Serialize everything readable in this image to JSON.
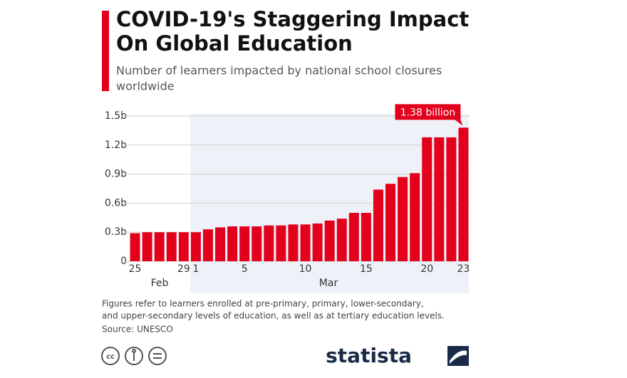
{
  "chart_data": {
    "type": "bar",
    "title": [
      "COVID-19's Staggering Impact",
      "On Global Education"
    ],
    "subtitle": [
      "Number of learners impacted by national school closures",
      "worldwide"
    ],
    "categories": [
      "25",
      null,
      null,
      null,
      "29",
      "1",
      null,
      null,
      null,
      "5",
      null,
      null,
      null,
      null,
      "10",
      null,
      null,
      null,
      null,
      "15",
      null,
      null,
      null,
      null,
      "20",
      null,
      null,
      "23"
    ],
    "x_groups": [
      "Feb",
      "Mar"
    ],
    "values": [
      0.29,
      0.3,
      0.3,
      0.3,
      0.3,
      0.3,
      0.33,
      0.35,
      0.36,
      0.36,
      0.36,
      0.37,
      0.37,
      0.38,
      0.38,
      0.39,
      0.42,
      0.44,
      0.5,
      0.5,
      0.74,
      0.8,
      0.87,
      0.91,
      1.28,
      1.28,
      1.28,
      1.38
    ],
    "value_labels": [
      null,
      null,
      null,
      null,
      null,
      null,
      null,
      null,
      null,
      null,
      null,
      null,
      null,
      null,
      null,
      null,
      null,
      null,
      null,
      null,
      null,
      null,
      null,
      null,
      null,
      null,
      null,
      "1.38 billion"
    ],
    "color": "#e3001b",
    "ylim": [
      0,
      1.5
    ],
    "yticks": [
      0,
      {
        "value": 0.3,
        "label": "0.3b"
      },
      {
        "value": 0.6,
        "label": "0.6b"
      },
      {
        "value": 0.9,
        "label": "0.9b"
      },
      {
        "value": 1.2,
        "label": "1.2b"
      },
      {
        "value": 1.5,
        "label": "1.5b"
      }
    ],
    "grid": true,
    "notes": [
      "Figures refer to learners enrolled at pre-primary, primary, lower-secondary,",
      "and upper-secondary levels of education, as well as at tertiary education levels."
    ],
    "source": "Source: UNESCO",
    "brand": "statista"
  }
}
